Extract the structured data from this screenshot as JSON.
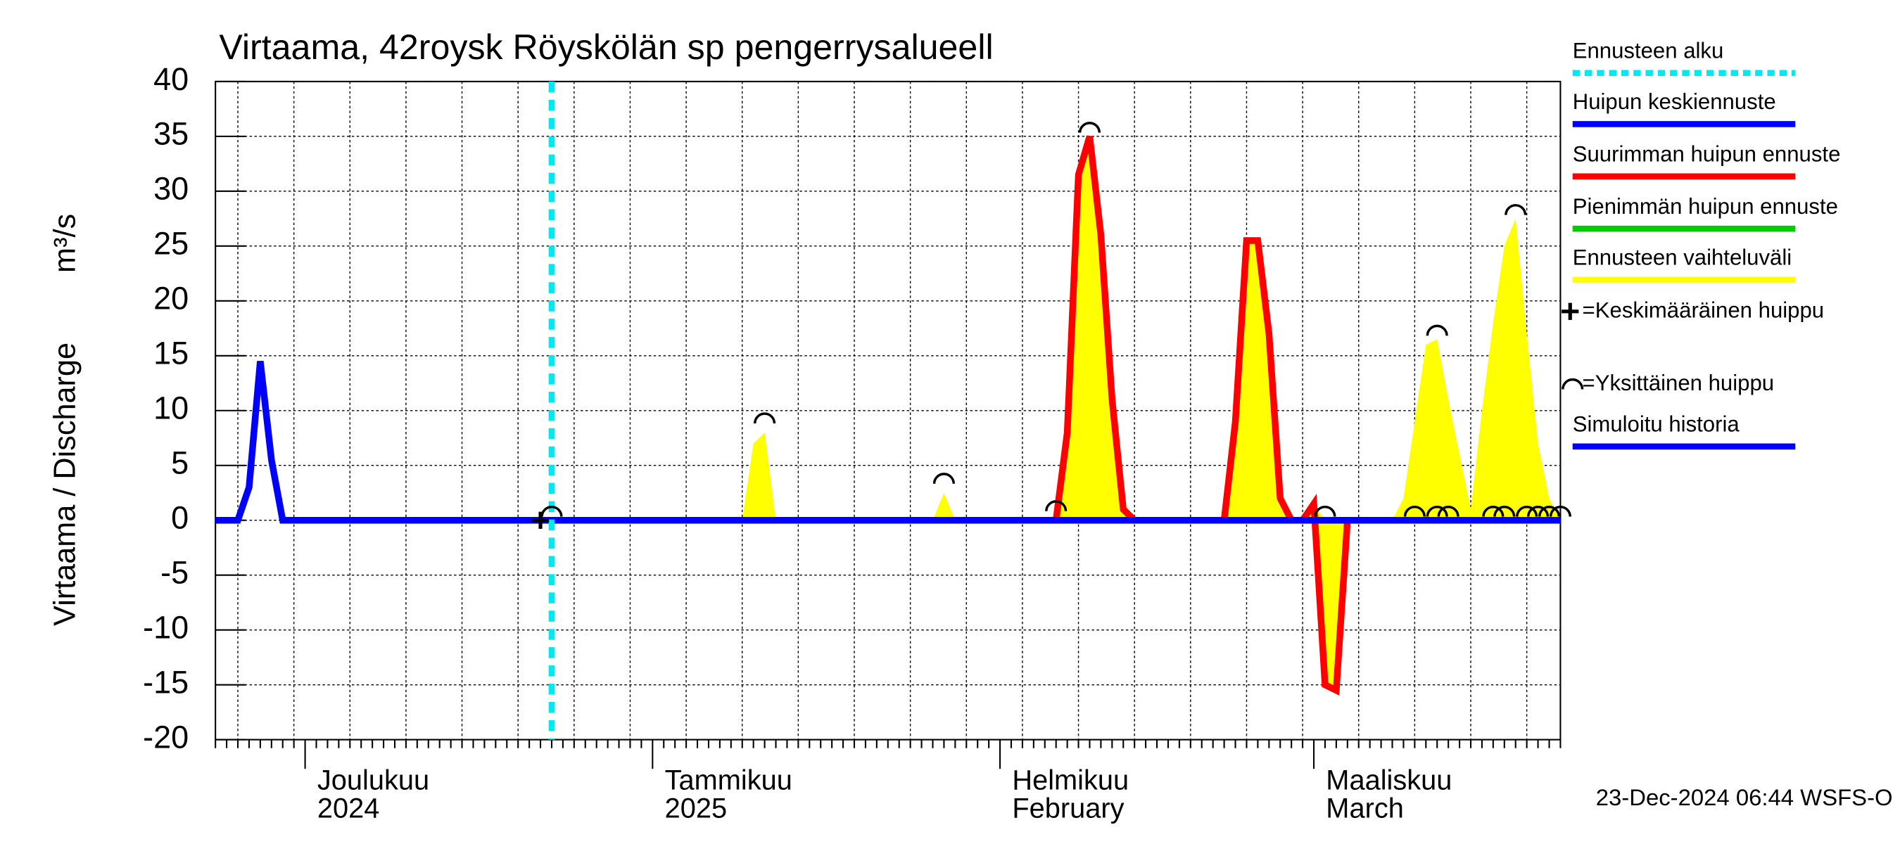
{
  "chart_data": {
    "type": "line",
    "title": "Virtaama, 42roysk Röyskölän sp pengerrysalueell",
    "ylabel": "Virtaama / Discharge",
    "ylabel_unit": "m³/s",
    "timestamp": "23-Dec-2024 06:44 WSFS-O",
    "categories": [
      null,
      null,
      null,
      null,
      null,
      null,
      null,
      null,
      "Joulukuu\n2024",
      null,
      null,
      null,
      null,
      null,
      null,
      null,
      null,
      null,
      null,
      null,
      null,
      null,
      null,
      null,
      null,
      null,
      null,
      null,
      null,
      null,
      null,
      null,
      null,
      null,
      null,
      null,
      null,
      null,
      null,
      "Tammikuu\n2025",
      null,
      null,
      null,
      null,
      null,
      null,
      null,
      null,
      null,
      null,
      null,
      null,
      null,
      null,
      null,
      null,
      null,
      null,
      null,
      null,
      null,
      null,
      null,
      null,
      null,
      null,
      null,
      null,
      null,
      null,
      "Helmikuu\nFebruary",
      null,
      null,
      null,
      null,
      null,
      null,
      null,
      null,
      null,
      null,
      null,
      null,
      null,
      null,
      null,
      null,
      null,
      null,
      null,
      null,
      null,
      null,
      null,
      null,
      null,
      null,
      null,
      "Maaliskuu\nMarch",
      null,
      null,
      null,
      null,
      null,
      null,
      null,
      null,
      null,
      null,
      null,
      null,
      null,
      null,
      null,
      null,
      null,
      null,
      null,
      null,
      null,
      null
    ],
    "ylim": [
      -20,
      40
    ],
    "yticks": [
      -20,
      -15,
      -10,
      -5,
      0,
      5,
      10,
      15,
      20,
      25,
      30,
      35,
      40
    ],
    "grid": true,
    "forecast_start": {
      "name": "Ennusteen alku",
      "color": "#00e8f0",
      "x": 30
    },
    "series": [
      {
        "name": "Huipun keskiennuste",
        "color": "#0000ff",
        "values": [
          null,
          null,
          null,
          null,
          null,
          null,
          null,
          null,
          null,
          null,
          null,
          null,
          null,
          null,
          null,
          null,
          null,
          null,
          null,
          null,
          null,
          null,
          null,
          null,
          null,
          null,
          null,
          null,
          null,
          null,
          0,
          0,
          0,
          0,
          0,
          0,
          0,
          0,
          0,
          0,
          0,
          0,
          0,
          0,
          0,
          0,
          0,
          0,
          0,
          0,
          0,
          0,
          0,
          0,
          0,
          0,
          0,
          0,
          0,
          0,
          0,
          0,
          0,
          0,
          0,
          0,
          0,
          0,
          0,
          0,
          0,
          0,
          0,
          0,
          0,
          0,
          0,
          0,
          0,
          0,
          0,
          0,
          0,
          0,
          0,
          0,
          0,
          0,
          0,
          0,
          0,
          0,
          0,
          0,
          0,
          0,
          0,
          0,
          0,
          0,
          0,
          0,
          0,
          0,
          0,
          0,
          0,
          0,
          0,
          0,
          0,
          0,
          0,
          0,
          0,
          0,
          0,
          0,
          0,
          0,
          0
        ]
      },
      {
        "name": "Suurimman huipun ennuste",
        "color": "#ff0000",
        "values": [
          null,
          null,
          null,
          null,
          null,
          null,
          null,
          null,
          null,
          null,
          null,
          null,
          null,
          null,
          null,
          null,
          null,
          null,
          null,
          null,
          null,
          null,
          null,
          null,
          null,
          null,
          null,
          null,
          null,
          null,
          0,
          0,
          0,
          0,
          0,
          0,
          0,
          0,
          0,
          0,
          0,
          0,
          0,
          0,
          0,
          0,
          0,
          0,
          0,
          0,
          0,
          0,
          0,
          0,
          0,
          0,
          0,
          0,
          0,
          0,
          0,
          0,
          0,
          0,
          0,
          0,
          0,
          0,
          0,
          0,
          0,
          0,
          0,
          0,
          0,
          0,
          8,
          31.5,
          35,
          26,
          11,
          1,
          0,
          0,
          0,
          0,
          0,
          0,
          0,
          0,
          0,
          9,
          25.5,
          25.5,
          17,
          2,
          0,
          0,
          1.5,
          -15,
          -15.5,
          0,
          0,
          0,
          0,
          0,
          0,
          0,
          0,
          0,
          0,
          0,
          0,
          0,
          0,
          0,
          0,
          0,
          0,
          0,
          0
        ]
      },
      {
        "name": "Pienimmän huipun ennuste",
        "color": "#00cc00",
        "values": [
          null,
          null,
          null,
          null,
          null,
          null,
          null,
          null,
          null,
          null,
          null,
          null,
          null,
          null,
          null,
          null,
          null,
          null,
          null,
          null,
          null,
          null,
          null,
          null,
          null,
          null,
          null,
          null,
          null,
          null,
          0,
          0,
          0,
          0,
          0,
          0,
          0,
          0,
          0,
          0,
          0,
          0,
          0,
          0,
          0,
          0,
          0,
          0,
          0,
          0,
          0,
          0,
          0,
          0,
          0,
          0,
          0,
          0,
          0,
          0,
          0,
          0,
          0,
          0,
          0,
          0,
          0,
          0,
          0,
          0,
          0,
          0,
          0,
          0,
          0,
          0,
          0,
          0,
          0,
          0,
          0,
          0,
          0,
          0,
          0,
          0,
          0,
          0,
          0,
          0,
          0,
          0,
          0,
          0,
          0,
          0,
          0,
          0,
          0,
          0,
          0,
          0,
          0,
          0,
          0,
          0,
          0,
          0,
          0,
          0,
          0,
          0,
          0,
          0,
          0,
          0,
          0,
          0,
          0,
          0,
          0
        ]
      },
      {
        "name": "Ennusteen vaihteluväli",
        "color": "#ffff00",
        "values": [
          null,
          null,
          null,
          null,
          null,
          null,
          null,
          null,
          null,
          null,
          null,
          null,
          null,
          null,
          null,
          null,
          null,
          null,
          null,
          null,
          null,
          null,
          null,
          null,
          null,
          null,
          null,
          null,
          null,
          null,
          0,
          0,
          0,
          0,
          0,
          0,
          0,
          0,
          0,
          0,
          0,
          0,
          0,
          0,
          0,
          0,
          0,
          0,
          7,
          8,
          0,
          0,
          0,
          0,
          0,
          0,
          0,
          0,
          0,
          0,
          0,
          0,
          0,
          0,
          0,
          2.5,
          0,
          0,
          0,
          0,
          0,
          0,
          0,
          0,
          0,
          0,
          8,
          31.5,
          35,
          26,
          11,
          1,
          0,
          0,
          0,
          0,
          0,
          0,
          0,
          0,
          0,
          9,
          25.5,
          25.5,
          17,
          2,
          0,
          0,
          1.5,
          0,
          0,
          0,
          0,
          0,
          0,
          0,
          2,
          9,
          16,
          16.5,
          11,
          6,
          1,
          10,
          18,
          25,
          27.5,
          17,
          7,
          2,
          0
        ],
        "lower": [
          null,
          null,
          null,
          null,
          null,
          null,
          null,
          null,
          null,
          null,
          null,
          null,
          null,
          null,
          null,
          null,
          null,
          null,
          null,
          null,
          null,
          null,
          null,
          null,
          null,
          null,
          null,
          null,
          null,
          null,
          0,
          0,
          0,
          0,
          0,
          0,
          0,
          0,
          0,
          0,
          0,
          0,
          0,
          0,
          0,
          0,
          0,
          0,
          0,
          0,
          0,
          0,
          0,
          0,
          0,
          0,
          0,
          0,
          0,
          0,
          0,
          0,
          0,
          0,
          0,
          0,
          0,
          0,
          0,
          0,
          0,
          0,
          0,
          0,
          0,
          0,
          0,
          0,
          0,
          0,
          0,
          0,
          0,
          0,
          0,
          0,
          0,
          0,
          0,
          0,
          0,
          0,
          0,
          0,
          0,
          0,
          0,
          0,
          0,
          -15,
          -15.5,
          0,
          0,
          0,
          0,
          0,
          0,
          0,
          0,
          0,
          0,
          0,
          0,
          0,
          0,
          0,
          0,
          0,
          0,
          0,
          0
        ]
      },
      {
        "name": "Simuloitu historia",
        "color": "#0000ff",
        "values": [
          0,
          0,
          0,
          3,
          14.5,
          5.5,
          0,
          0,
          0,
          0,
          0,
          0,
          0,
          0,
          0,
          0,
          0,
          0,
          0,
          0,
          0,
          0,
          0,
          0,
          0,
          0,
          0,
          0,
          0,
          0,
          0,
          null,
          null,
          null,
          null,
          null,
          null,
          null,
          null,
          null,
          null,
          null,
          null,
          null,
          null,
          null,
          null,
          null,
          null,
          null,
          null,
          null,
          null,
          null,
          null,
          null,
          null,
          null,
          null,
          null,
          null,
          null,
          null,
          null,
          null,
          null,
          null,
          null,
          null,
          null,
          null,
          null,
          null,
          null,
          null,
          null,
          null,
          null,
          null,
          null,
          null,
          null,
          null,
          null,
          null,
          null,
          null,
          null,
          null,
          null,
          null,
          null,
          null,
          null,
          null,
          null,
          null,
          null,
          null,
          null,
          null,
          null,
          null,
          null,
          null,
          null,
          null,
          null,
          null,
          null,
          null,
          null,
          null,
          null,
          null,
          null,
          null,
          null,
          null,
          null,
          null
        ]
      }
    ],
    "mean_peak": {
      "name": "=Keskimääräinen huippu",
      "x": [
        29
      ],
      "values": [
        0
      ]
    },
    "single_peaks": {
      "name": "=Yksittäinen huippu",
      "x": [
        30,
        49,
        65,
        75,
        78,
        99,
        107,
        109,
        110,
        109,
        116,
        114,
        115,
        117,
        118,
        119,
        120
      ],
      "values": [
        0,
        8.5,
        3,
        0.5,
        35,
        0,
        0,
        0,
        0,
        16.5,
        27.5,
        0,
        0,
        0,
        0,
        0,
        0
      ]
    }
  }
}
